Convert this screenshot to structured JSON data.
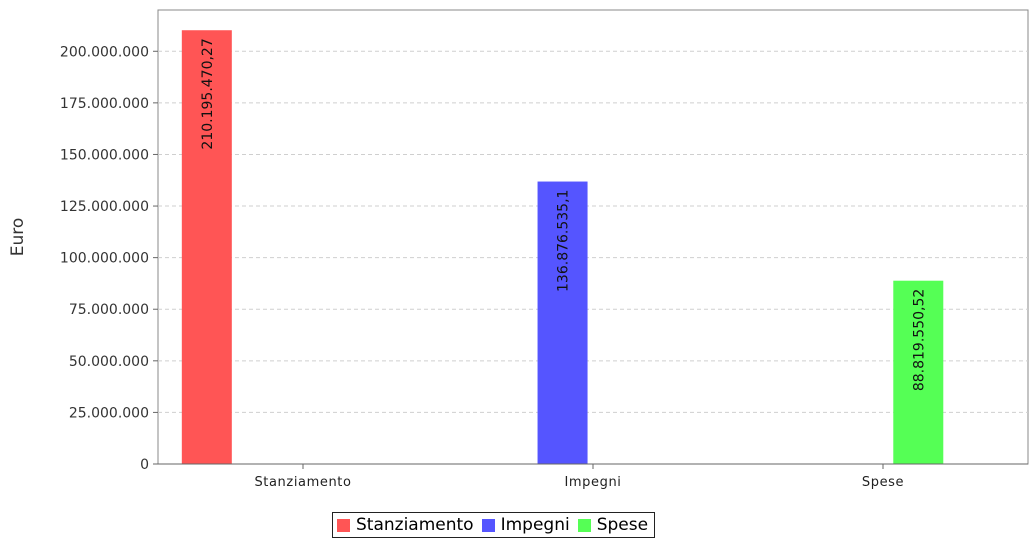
{
  "chart_data": {
    "type": "bar",
    "title": "",
    "ylabel": "Euro",
    "xlabel": "",
    "ylim": [
      0,
      220000000
    ],
    "yticks": [
      0,
      25000000,
      50000000,
      75000000,
      100000000,
      125000000,
      150000000,
      175000000,
      200000000
    ],
    "ytick_labels": [
      "0",
      "25.000.000",
      "50.000.000",
      "75.000.000",
      "100.000.000",
      "125.000.000",
      "150.000.000",
      "175.000.000",
      "200.000.000"
    ],
    "categories": [
      "Stanziamento",
      "Impegni",
      "Spese"
    ],
    "series": [
      {
        "name": "Stanziamento",
        "color": "#ff5555",
        "values": [
          210195470.27,
          null,
          null
        ],
        "labels": [
          "210.195.470,27",
          "",
          ""
        ]
      },
      {
        "name": "Impegni",
        "color": "#5555ff",
        "values": [
          null,
          136876535.1,
          null
        ],
        "labels": [
          "",
          "136.876.535,1",
          ""
        ]
      },
      {
        "name": "Spese",
        "color": "#55ff55",
        "values": [
          null,
          null,
          88819550.52
        ],
        "labels": [
          "",
          "",
          "88.819.550,52"
        ]
      }
    ],
    "grid": true,
    "legend_position": "bottom"
  },
  "legend": {
    "items": [
      {
        "label": "Stanziamento",
        "color": "#ff5555"
      },
      {
        "label": "Impegni",
        "color": "#5555ff"
      },
      {
        "label": "Spese",
        "color": "#55ff55"
      }
    ]
  }
}
